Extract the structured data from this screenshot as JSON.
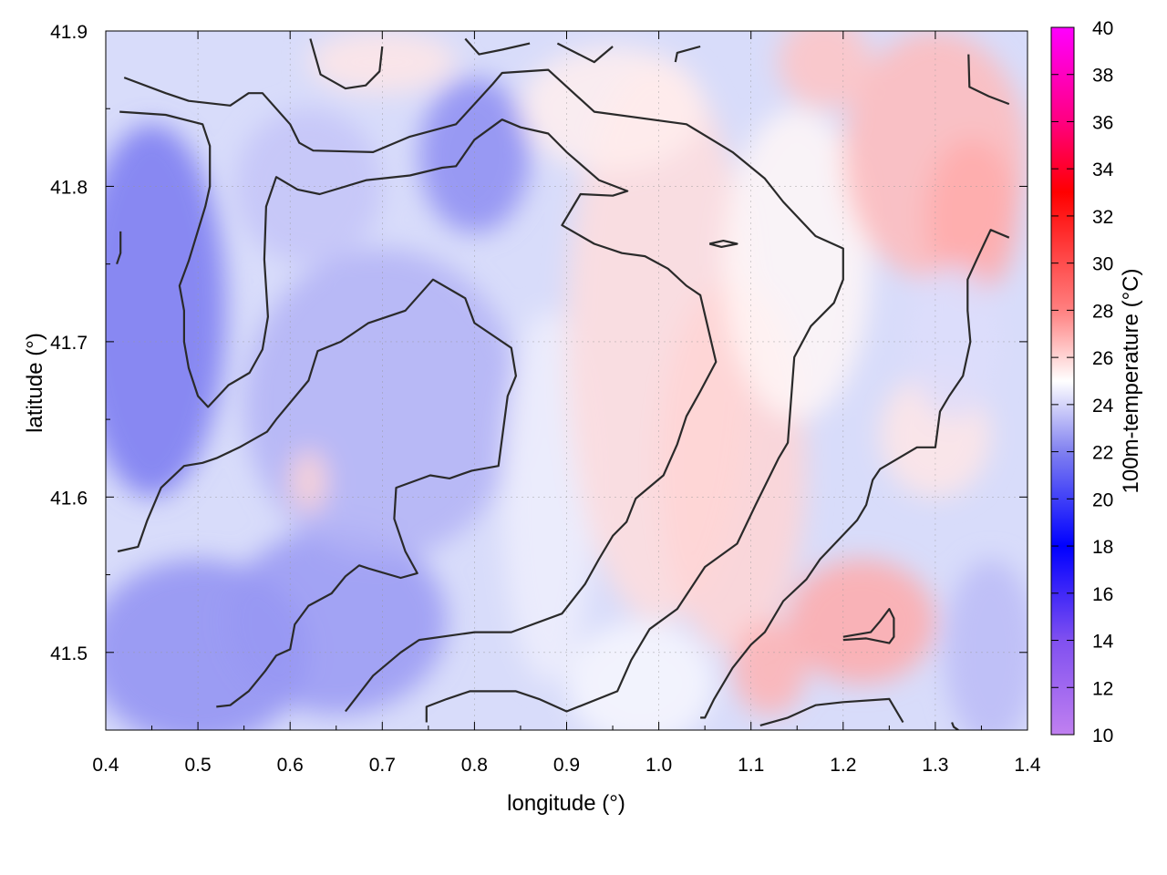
{
  "chart_data": {
    "type": "heatmap",
    "title": "",
    "xlabel": "longitude (°)",
    "ylabel": "latitude (°)",
    "colorbar_label": "100m-temperature (°C)",
    "xlim": [
      0.4,
      1.4
    ],
    "ylim": [
      41.45,
      41.9
    ],
    "x_ticks": [
      "0.4",
      "0.5",
      "0.6",
      "0.7",
      "0.8",
      "0.9",
      "1.0",
      "1.1",
      "1.2",
      "1.3",
      "1.4"
    ],
    "y_ticks": [
      "41.5",
      "41.6",
      "41.7",
      "41.8",
      "41.9"
    ],
    "colorbar_range": [
      10,
      40
    ],
    "colorbar_ticks": [
      "10",
      "12",
      "14",
      "16",
      "18",
      "20",
      "22",
      "24",
      "26",
      "28",
      "30",
      "32",
      "34",
      "36",
      "38",
      "40"
    ],
    "colormap": [
      {
        "value": 10,
        "color": "#c080f0"
      },
      {
        "value": 14,
        "color": "#8050f0"
      },
      {
        "value": 18,
        "color": "#0000ff"
      },
      {
        "value": 22,
        "color": "#8080f0"
      },
      {
        "value": 25,
        "color": "#ffffff"
      },
      {
        "value": 28,
        "color": "#ff8080"
      },
      {
        "value": 33,
        "color": "#ff0000"
      },
      {
        "value": 36,
        "color": "#ff0080"
      },
      {
        "value": 40,
        "color": "#ff00ff"
      }
    ],
    "grid": true,
    "field_summary": {
      "cool_region": "west and south (~22–24 °C)",
      "warm_band": "central north-south band from ~0.85° to ~1.2° longitude (~25–26 °C)",
      "hot_spots": "north-east corner and around 1.2° E, 41.5° N (~27–29 °C)"
    },
    "contour_color": "#2a2a2a"
  }
}
